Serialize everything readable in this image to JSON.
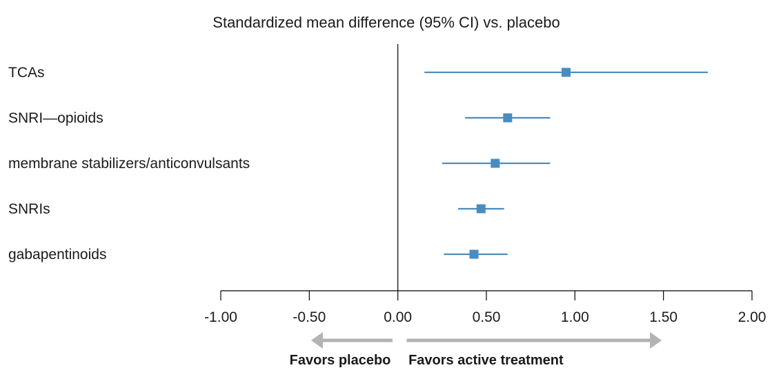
{
  "chart_data": {
    "type": "forest",
    "title": "Standardized mean difference (95% CI) vs. placebo",
    "categories": [
      "TCAs",
      "SNRI—opioids",
      "membrane stabilizers/anticonvulsants",
      "SNRIs",
      "gabapentinoids"
    ],
    "estimates": [
      0.95,
      0.62,
      0.55,
      0.47,
      0.43
    ],
    "ci_lower": [
      0.15,
      0.38,
      0.25,
      0.34,
      0.26
    ],
    "ci_upper": [
      1.75,
      0.86,
      0.86,
      0.6,
      0.62
    ],
    "xlim": [
      -1.0,
      2.0
    ],
    "xticks": [
      -1.0,
      -0.5,
      0.0,
      0.5,
      1.0,
      1.5,
      2.0
    ],
    "xtick_labels": [
      "-1.00",
      "-0.50",
      "0.00",
      "0.50",
      "1.00",
      "1.50",
      "2.00"
    ],
    "reference_line": 0,
    "grid": false,
    "marker_color": "#4a8cbf",
    "arrow_color": "#b3b3b3",
    "favors_left": "Favors placebo",
    "favors_right": "Favors active treatment"
  }
}
